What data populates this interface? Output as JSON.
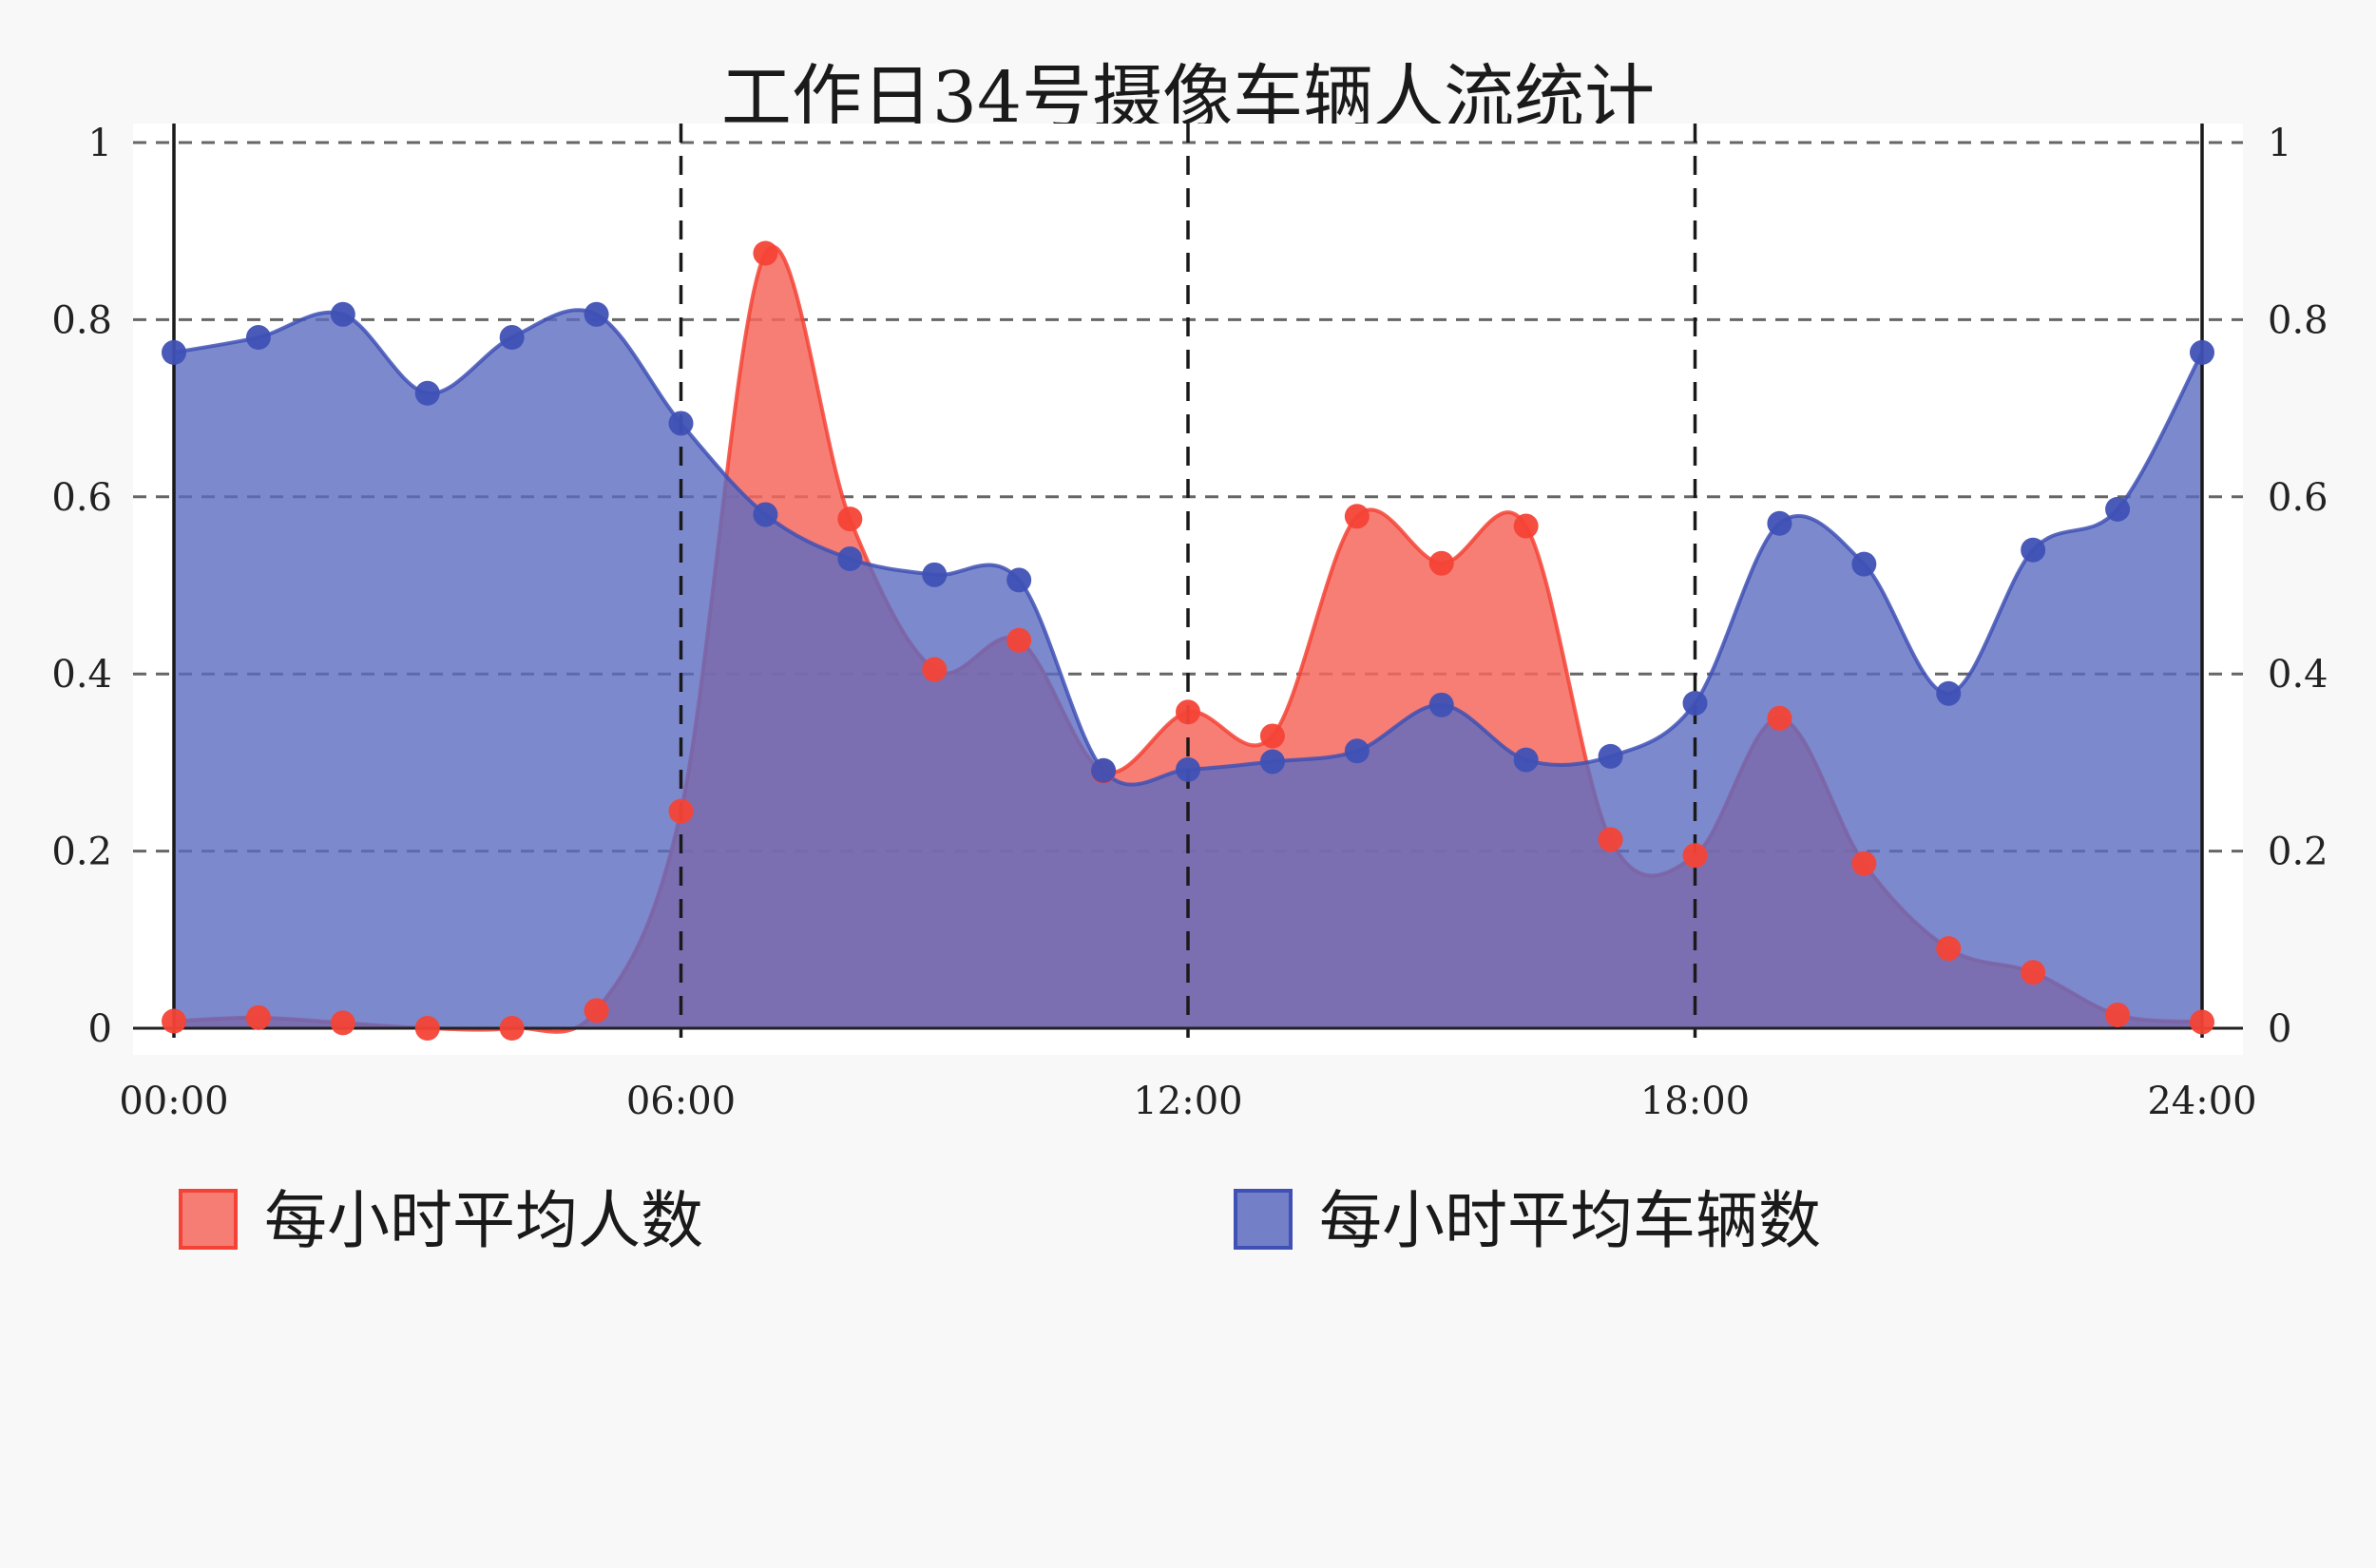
{
  "chart_data": {
    "type": "area",
    "title": "工作日34号摄像车辆人流统计",
    "x_ticks": [
      "00:00",
      "06:00",
      "12:00",
      "18:00",
      "24:00"
    ],
    "y_ticks": [
      "0",
      "0.2",
      "0.4",
      "0.6",
      "0.8",
      "1"
    ],
    "y_ticks_right": [
      "0",
      "0.2",
      "0.4",
      "0.6",
      "0.8",
      "1"
    ],
    "xlim": [
      0,
      24
    ],
    "ylim": [
      0,
      1
    ],
    "x": [
      0,
      1,
      2,
      3,
      4,
      5,
      6,
      7,
      8,
      9,
      10,
      11,
      12,
      13,
      14,
      15,
      16,
      17,
      18,
      19,
      20,
      21,
      22,
      23,
      24
    ],
    "grid": true,
    "legend_position": "bottom",
    "series": [
      {
        "name": "每小时平均人数",
        "color": "#f44336",
        "fill": "#f4675c",
        "values": [
          0.008,
          0.012,
          0.006,
          0.0,
          0.0,
          0.02,
          0.245,
          0.875,
          0.575,
          0.405,
          0.438,
          0.29,
          0.357,
          0.33,
          0.578,
          0.525,
          0.567,
          0.213,
          0.195,
          0.35,
          0.186,
          0.09,
          0.063,
          0.015,
          0.007
        ]
      },
      {
        "name": "每小时平均车辆数",
        "color": "#3f51b5",
        "fill": "#5c6bc0",
        "values": [
          0.763,
          0.78,
          0.806,
          0.717,
          0.78,
          0.806,
          0.683,
          0.58,
          0.53,
          0.512,
          0.506,
          0.291,
          0.292,
          0.301,
          0.313,
          0.365,
          0.303,
          0.307,
          0.367,
          0.57,
          0.524,
          0.378,
          0.54,
          0.586,
          0.763
        ]
      }
    ]
  }
}
